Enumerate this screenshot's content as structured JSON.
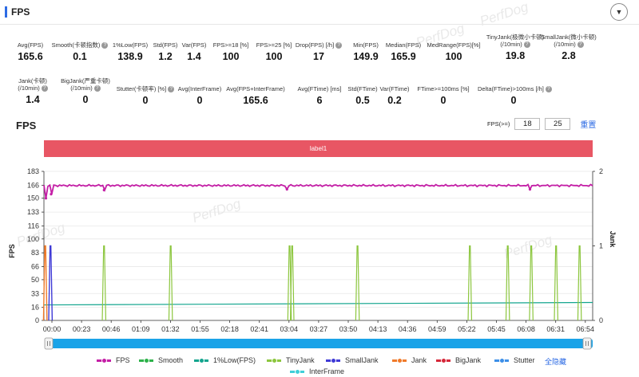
{
  "header": {
    "title": "FPS",
    "collapse_icon": "chevron-down-icon"
  },
  "watermark": "PerfDog",
  "stats_row1": [
    {
      "label": "Avg(FPS)",
      "value": "165.6",
      "help": false
    },
    {
      "label": "Smooth(卡顿指数)",
      "value": "0.1",
      "help": true
    },
    {
      "label": "1%Low(FPS)",
      "value": "138.9",
      "help": false
    },
    {
      "label": "Std(FPS)",
      "value": "1.2",
      "help": false
    },
    {
      "label": "Var(FPS)",
      "value": "1.4",
      "help": false
    },
    {
      "label": "FPS>=18 [%]",
      "value": "100",
      "help": false
    },
    {
      "label": "FPS>=25 [%]",
      "value": "100",
      "help": false
    },
    {
      "label": "Drop(FPS) [/h]",
      "value": "17",
      "help": true
    },
    {
      "label": "Min(FPS)",
      "value": "149.9",
      "help": false
    },
    {
      "label": "Median(FPS)",
      "value": "165.9",
      "help": false
    },
    {
      "label": "MedRange(FPS)[%]",
      "value": "100",
      "help": false
    },
    {
      "label": "TinyJank(极微小卡顿)\n(/10min)",
      "value": "19.8",
      "help": true
    },
    {
      "label": "SmallJank(微小卡顿)\n(/10min)",
      "value": "2.8",
      "help": true
    }
  ],
  "stats_row2": [
    {
      "label": "Jank(卡顿)\n(/10min)",
      "value": "1.4",
      "help": true
    },
    {
      "label": "BigJank(严重卡顿)\n(/10min)",
      "value": "0",
      "help": true
    },
    {
      "label": "Stutter(卡顿率) [%]",
      "value": "0",
      "help": true
    },
    {
      "label": "Avg(InterFrame)",
      "value": "0",
      "help": false
    },
    {
      "label": "Avg(FPS+InterFrame)",
      "value": "165.6",
      "help": false
    },
    {
      "label": "Avg(FTime) [ms]",
      "value": "6",
      "help": false
    },
    {
      "label": "Std(FTime)",
      "value": "0.5",
      "help": false
    },
    {
      "label": "Var(FTime)",
      "value": "0.2",
      "help": false
    },
    {
      "label": "FTime>=100ms [%]",
      "value": "0",
      "help": false
    },
    {
      "label": "Delta(FTime)>100ms [/h]",
      "value": "0",
      "help": true
    }
  ],
  "chart_section": {
    "title": "FPS",
    "filter_label": "FPS(>=)",
    "filter_values": [
      "18",
      "25"
    ],
    "reset_label": "重置",
    "label_bar": "label1"
  },
  "chart_data": {
    "type": "line",
    "ylabel": "FPS",
    "y2label": "Jank",
    "yticks": [
      0,
      16,
      33,
      50,
      66,
      83,
      100,
      116,
      133,
      150,
      166,
      183
    ],
    "y2ticks": [
      0,
      1,
      2
    ],
    "ylim": [
      0,
      183
    ],
    "y2lim": [
      0,
      2
    ],
    "xticks": [
      "00:00",
      "00:23",
      "00:46",
      "01:09",
      "01:32",
      "01:55",
      "02:18",
      "02:41",
      "03:04",
      "03:27",
      "03:50",
      "04:13",
      "04:36",
      "04:59",
      "05:22",
      "05:45",
      "06:08",
      "06:31",
      "06:54"
    ],
    "xlim_seconds": [
      0,
      420
    ],
    "series": [
      {
        "name": "FPS",
        "color": "#c41fa6",
        "axis": "left",
        "baseline": 165.6,
        "dips": [
          {
            "t": 1.5,
            "v": 150
          },
          {
            "t": 5.5,
            "v": 155
          },
          {
            "t": 46,
            "v": 160
          },
          {
            "t": 186,
            "v": 161
          },
          {
            "t": 372,
            "v": 161
          }
        ]
      },
      {
        "name": "Smooth",
        "color": "#2db24a",
        "axis": "right",
        "values": []
      },
      {
        "name": "1%Low(FPS)",
        "color": "#13a58e",
        "axis": "left",
        "start": 19,
        "end": 22
      },
      {
        "name": "TinyJank",
        "color": "#8cc63e",
        "axis": "right",
        "events_t": [
          46,
          97,
          188,
          190,
          240,
          326,
          355,
          373,
          392,
          410
        ]
      },
      {
        "name": "SmallJank",
        "color": "#3f3ad6",
        "axis": "right",
        "events_t": [
          5
        ]
      },
      {
        "name": "Jank",
        "color": "#f07a2a",
        "axis": "right",
        "events_t": [
          1
        ]
      },
      {
        "name": "BigJank",
        "color": "#d6283a",
        "axis": "right",
        "values": []
      },
      {
        "name": "Stutter",
        "color": "#3c8fe8",
        "axis": "right",
        "values": []
      },
      {
        "name": "InterFrame",
        "color": "#40cfd8",
        "axis": "left",
        "values": []
      }
    ]
  },
  "legend": {
    "toggle_all": "全隐藏"
  }
}
